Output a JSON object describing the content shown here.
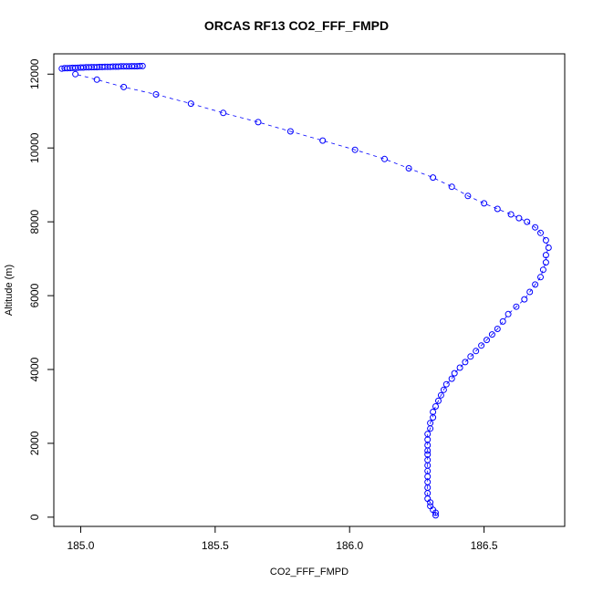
{
  "chart_data": {
    "type": "scatter",
    "title": "ORCAS RF13 CO2_FFF_FMPD",
    "xlabel": "CO2_FFF_FMPD",
    "ylabel": "Altitude (m)",
    "xlim": [
      184.9,
      186.8
    ],
    "ylim": [
      -250,
      12550
    ],
    "x_ticks": [
      185.0,
      185.5,
      186.0,
      186.5
    ],
    "x_tick_labels": [
      "185.0",
      "185.5",
      "186.0",
      "186.5"
    ],
    "y_ticks": [
      0,
      2000,
      4000,
      6000,
      8000,
      10000,
      12000
    ],
    "y_tick_labels": [
      "0",
      "2000",
      "4000",
      "6000",
      "8000",
      "10000",
      "12000"
    ],
    "grid": false,
    "legend": "none",
    "marker": "open-circle",
    "line_style": "dashed",
    "color": "#0000ff",
    "series": [
      {
        "x": [
          186.32,
          186.32,
          186.31,
          186.3,
          186.3,
          186.29,
          186.29,
          186.29,
          186.29,
          186.29,
          186.29,
          186.29,
          186.29,
          186.29,
          186.29,
          186.29,
          186.29,
          186.29,
          186.3,
          186.3,
          186.31,
          186.31,
          186.32,
          186.33,
          186.34,
          186.35,
          186.36,
          186.38,
          186.39,
          186.41,
          186.43,
          186.45,
          186.47,
          186.49,
          186.51,
          186.53,
          186.55,
          186.57,
          186.59,
          186.62,
          186.65,
          186.67,
          186.69,
          186.71,
          186.72,
          186.73,
          186.73,
          186.74,
          186.73,
          186.71,
          186.69,
          186.66,
          186.63,
          186.6,
          186.55,
          186.5,
          186.44,
          186.38,
          186.31,
          186.22,
          186.13,
          186.02,
          185.9,
          185.78,
          185.66,
          185.53,
          185.41,
          185.28,
          185.16,
          185.06,
          184.98
        ],
        "y": [
          50,
          120,
          200,
          300,
          400,
          500,
          650,
          800,
          950,
          1100,
          1250,
          1400,
          1550,
          1700,
          1800,
          1950,
          2100,
          2250,
          2400,
          2550,
          2700,
          2850,
          3000,
          3150,
          3300,
          3450,
          3600,
          3750,
          3900,
          4050,
          4200,
          4350,
          4500,
          4650,
          4800,
          4950,
          5100,
          5300,
          5500,
          5700,
          5900,
          6100,
          6300,
          6500,
          6700,
          6900,
          7100,
          7300,
          7500,
          7700,
          7850,
          8000,
          8100,
          8200,
          8350,
          8500,
          8700,
          8950,
          9200,
          9450,
          9700,
          9950,
          10200,
          10450,
          10700,
          10950,
          11200,
          11450,
          11650,
          11850,
          12000
        ]
      },
      {
        "x": [
          184.93,
          184.94,
          184.95,
          184.96,
          184.97,
          184.98,
          184.99,
          185.0,
          185.01,
          185.02,
          185.03,
          185.04,
          185.05,
          185.06,
          185.07,
          185.08,
          185.09,
          185.1,
          185.11,
          185.12,
          185.13,
          185.14,
          185.15,
          185.16,
          185.17,
          185.18,
          185.19,
          185.2,
          185.21,
          185.22,
          185.23
        ],
        "y": [
          12150,
          12160,
          12160,
          12165,
          12170,
          12170,
          12175,
          12180,
          12180,
          12185,
          12185,
          12190,
          12190,
          12190,
          12195,
          12195,
          12200,
          12200,
          12200,
          12205,
          12205,
          12205,
          12210,
          12210,
          12210,
          12210,
          12215,
          12215,
          12215,
          12220,
          12220
        ]
      }
    ]
  }
}
